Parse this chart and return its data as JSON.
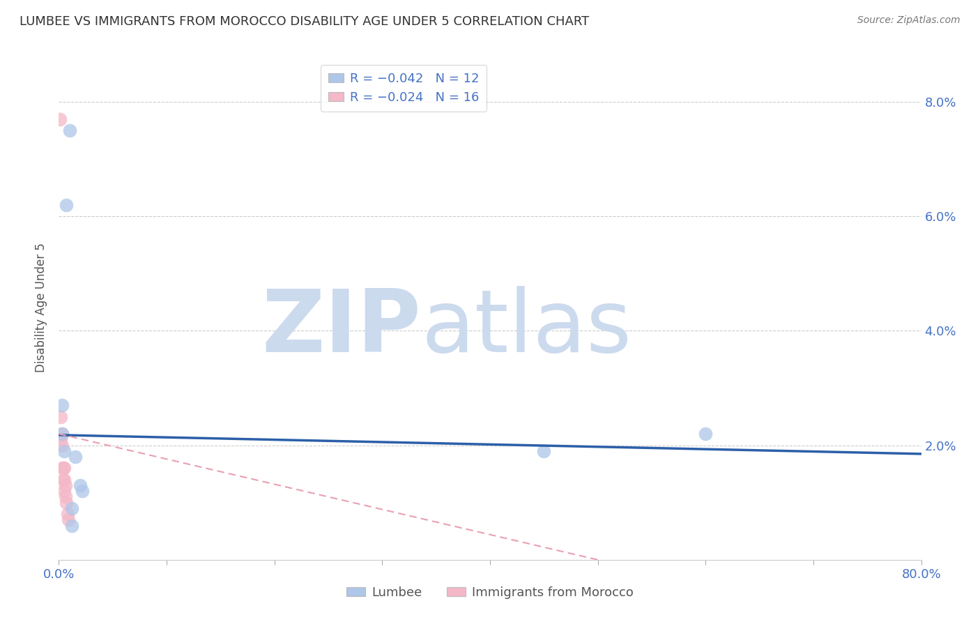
{
  "title": "LUMBEE VS IMMIGRANTS FROM MOROCCO DISABILITY AGE UNDER 5 CORRELATION CHART",
  "source": "Source: ZipAtlas.com",
  "ylabel": "Disability Age Under 5",
  "xlim": [
    0.0,
    0.8
  ],
  "ylim": [
    0.0,
    0.088
  ],
  "xticks": [
    0.0,
    0.1,
    0.2,
    0.3,
    0.4,
    0.5,
    0.6,
    0.7,
    0.8
  ],
  "xticklabels": [
    "0.0%",
    "",
    "",
    "",
    "",
    "",
    "",
    "",
    "80.0%"
  ],
  "yticks": [
    0.0,
    0.02,
    0.04,
    0.06,
    0.08
  ],
  "yticklabels": [
    "",
    "2.0%",
    "4.0%",
    "6.0%",
    "8.0%"
  ],
  "lumbee_color": "#aec6e8",
  "morocco_color": "#f4b8c8",
  "lumbee_line_color": "#2c5fa8",
  "morocco_line_color": "#e8a0b0",
  "grid_color": "#cccccc",
  "watermark_zip": "ZIP",
  "watermark_atlas": "atlas",
  "watermark_color": "#ccdaee",
  "lumbee_x": [
    0.003,
    0.003,
    0.005,
    0.007,
    0.01,
    0.015,
    0.02,
    0.022,
    0.45,
    0.6,
    0.012,
    0.012
  ],
  "lumbee_y": [
    0.027,
    0.022,
    0.019,
    0.062,
    0.075,
    0.018,
    0.013,
    0.012,
    0.019,
    0.022,
    0.009,
    0.006
  ],
  "morocco_x": [
    0.001,
    0.002,
    0.002,
    0.003,
    0.003,
    0.003,
    0.004,
    0.004,
    0.005,
    0.005,
    0.005,
    0.006,
    0.006,
    0.007,
    0.008,
    0.009
  ],
  "morocco_y": [
    0.077,
    0.025,
    0.021,
    0.022,
    0.02,
    0.016,
    0.016,
    0.014,
    0.016,
    0.014,
    0.012,
    0.013,
    0.011,
    0.01,
    0.008,
    0.007
  ],
  "lumbee_line_x0": 0.0,
  "lumbee_line_x1": 0.8,
  "lumbee_line_y0": 0.0218,
  "lumbee_line_y1": 0.0185,
  "morocco_line_x0": 0.0,
  "morocco_line_x1": 0.5,
  "morocco_line_y0": 0.022,
  "morocco_line_y1": 0.0,
  "legend_label_lumbee": "Lumbee",
  "legend_label_morocco": "Immigrants from Morocco"
}
